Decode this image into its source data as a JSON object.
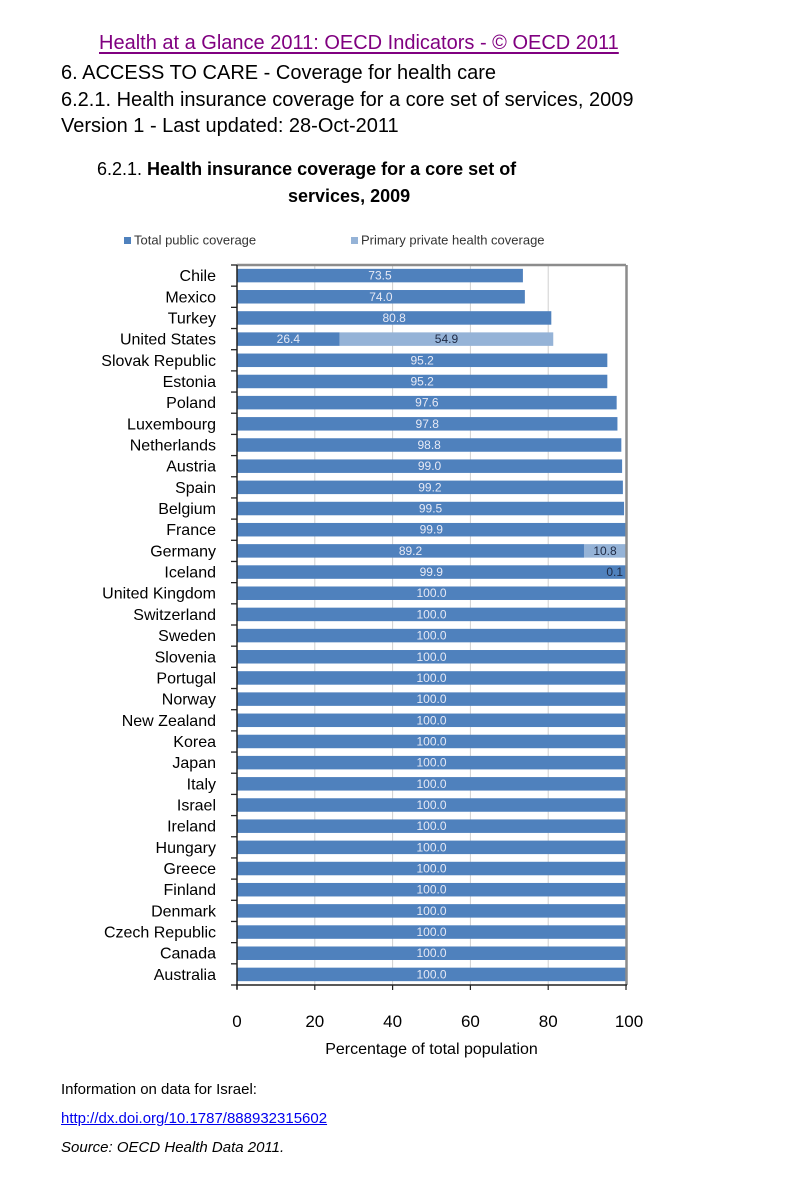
{
  "header": {
    "book_link": "Health at a Glance 2011: OECD Indicators - © OECD 2011",
    "section": "6. ACCESS TO CARE  - Coverage for health care",
    "indicator": "6.2.1. Health insurance coverage for a core set of services, 2009",
    "version": "Version 1 - Last updated: 28-Oct-2011"
  },
  "footer": {
    "info": "Information on data for Israel:",
    "link": "http://dx.doi.org/10.1787/888932315602",
    "source": "Source: OECD Health Data 2011."
  },
  "colors": {
    "public": "#4F81BD",
    "private": "#95B3D7",
    "label_on_dark": "#E6E9F5",
    "label_on_light": "#1F2A44",
    "frame": "#8C8C8C",
    "grid": "#D0D0D0",
    "link_visited": "#800080",
    "link": "#0000EE"
  },
  "chart_data": {
    "type": "bar",
    "orientation": "horizontal",
    "stacked": true,
    "title_prefix": "6.2.1. ",
    "title_bold_line1": "Health insurance coverage for a core set of",
    "title_bold_line2": "services, 2009",
    "xlabel": "Percentage of total population",
    "ylabel": "",
    "xlim": [
      0,
      100
    ],
    "xticks": [
      "0",
      "20",
      "40",
      "60",
      "80",
      "100"
    ],
    "grid": true,
    "legend_position": "top",
    "categories": [
      "Chile",
      "Mexico",
      "Turkey",
      "United States",
      "Slovak Republic",
      "Estonia",
      "Poland",
      "Luxembourg",
      "Netherlands",
      "Austria",
      "Spain ",
      "Belgium",
      "France",
      "Germany",
      "Iceland",
      "United Kingdom",
      "Switzerland",
      "Sweden",
      "Slovenia",
      "Portugal",
      "Norway",
      "New Zealand",
      "Korea",
      "Japan",
      "Italy",
      "Israel",
      "Ireland",
      "Hungary",
      "Greece",
      "Finland",
      "Denmark",
      "Czech Republic",
      "Canada",
      "Australia"
    ],
    "series": [
      {
        "name": "Total public coverage",
        "values": [
          73.5,
          74.0,
          80.8,
          26.4,
          95.2,
          95.2,
          97.6,
          97.8,
          98.8,
          99.0,
          99.2,
          99.5,
          99.9,
          89.2,
          99.9,
          100.0,
          100.0,
          100.0,
          100.0,
          100.0,
          100.0,
          100.0,
          100.0,
          100.0,
          100.0,
          100.0,
          100.0,
          100.0,
          100.0,
          100.0,
          100.0,
          100.0,
          100.0,
          100.0
        ],
        "labels": [
          "73.5",
          "74.0",
          "80.8",
          "26.4",
          "95.2",
          "95.2",
          "97.6",
          "97.8",
          "98.8",
          "99.0",
          "99.2",
          "99.5",
          "99.9",
          "89.2",
          "99.9",
          "100.0",
          "100.0",
          "100.0",
          "100.0",
          "100.0",
          "100.0",
          "100.0",
          "100.0",
          "100.0",
          "100.0",
          "100.0",
          "100.0",
          "100.0",
          "100.0",
          "100.0",
          "100.0",
          "100.0",
          "100.0",
          "100.0"
        ]
      },
      {
        "name": "Primary private health coverage",
        "values": [
          null,
          null,
          null,
          54.9,
          null,
          null,
          null,
          null,
          null,
          null,
          null,
          null,
          null,
          10.8,
          0.1,
          null,
          null,
          null,
          null,
          null,
          null,
          null,
          null,
          null,
          null,
          null,
          null,
          null,
          null,
          null,
          null,
          null,
          null,
          null
        ],
        "labels": [
          null,
          null,
          null,
          "54.9",
          null,
          null,
          null,
          null,
          null,
          null,
          null,
          null,
          null,
          "10.8",
          "0.1",
          null,
          null,
          null,
          null,
          null,
          null,
          null,
          null,
          null,
          null,
          null,
          null,
          null,
          null,
          null,
          null,
          null,
          null,
          null
        ]
      }
    ]
  }
}
